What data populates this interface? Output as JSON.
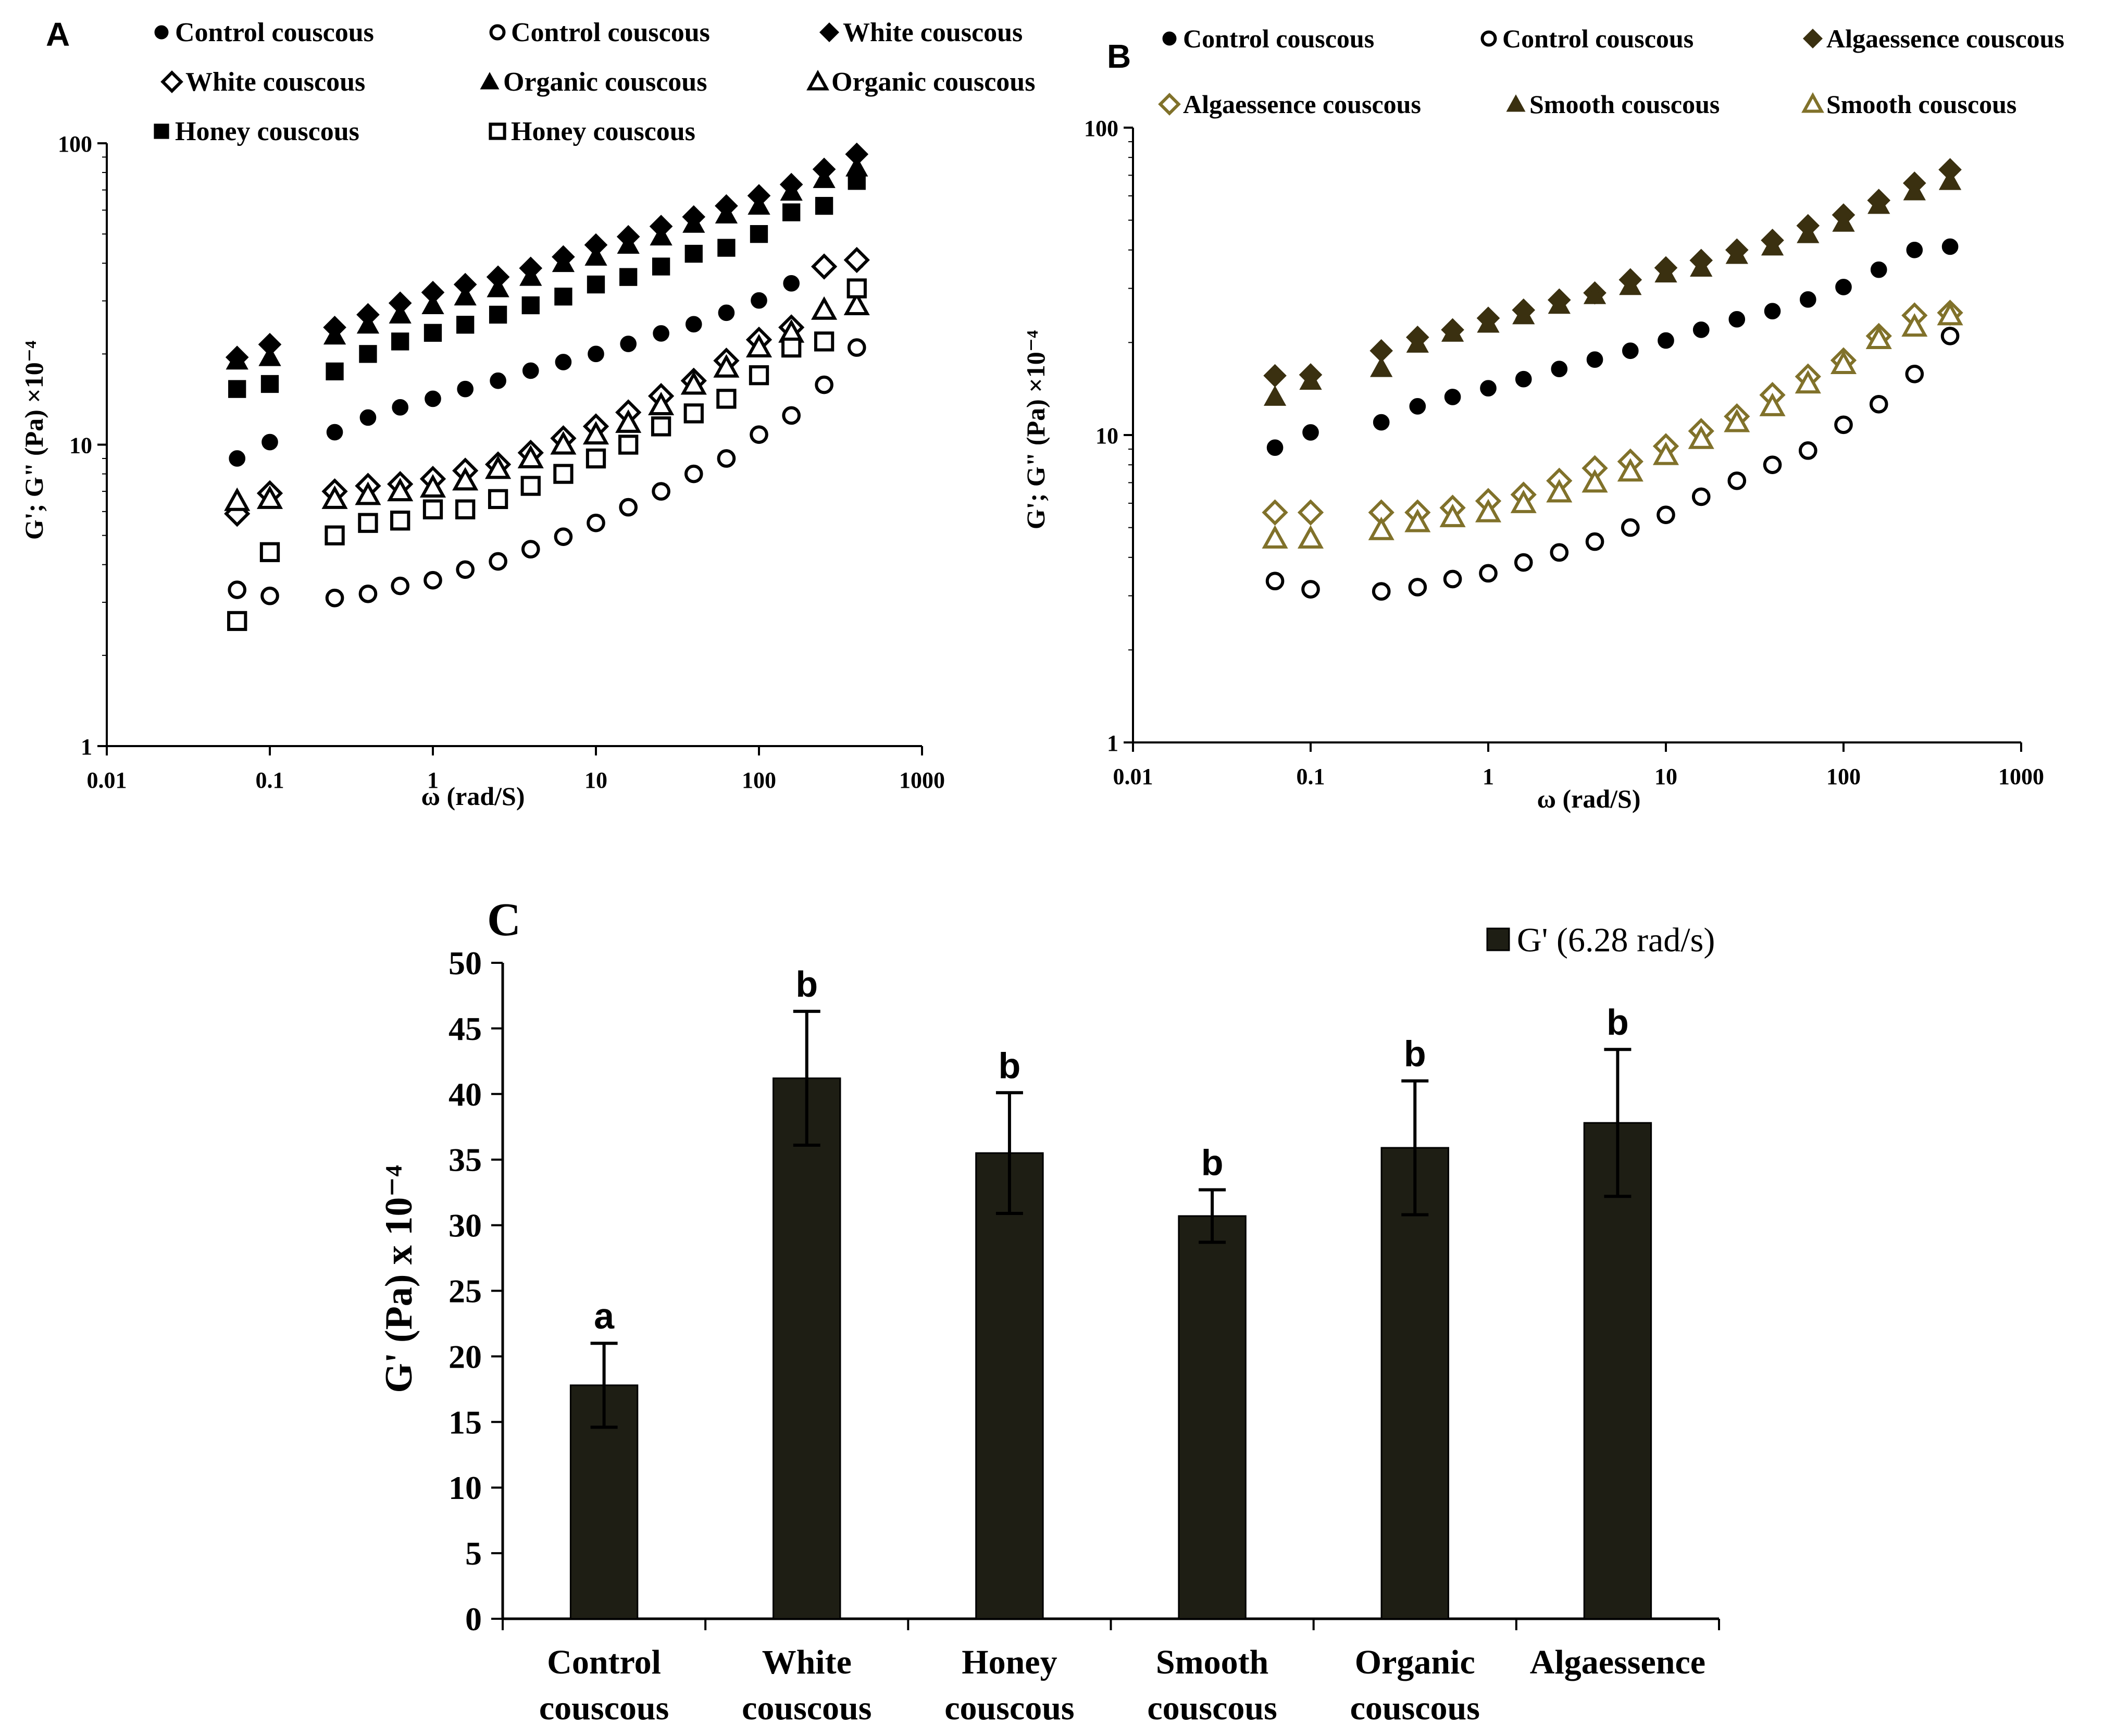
{
  "chart_data": [
    {
      "panel": "A",
      "type": "scatter",
      "title": "",
      "xlabel": "ω (rad/S)",
      "ylabel": "G'; G\" (Pa) ×10⁻⁴",
      "xscale": "log",
      "yscale": "log",
      "xlim": [
        0.01,
        1000
      ],
      "ylim": [
        1,
        100
      ],
      "xticks": [
        {
          "v": 0.01,
          "label": "0.01"
        },
        {
          "v": 0.1,
          "label": "0.1"
        },
        {
          "v": 1,
          "label": "1"
        },
        {
          "v": 10,
          "label": "10"
        },
        {
          "v": 100,
          "label": "100"
        },
        {
          "v": 1000,
          "label": "1000"
        }
      ],
      "yticks": [
        {
          "v": 1,
          "label": "1"
        },
        {
          "v": 10,
          "label": "10"
        },
        {
          "v": 100,
          "label": "100"
        }
      ],
      "legend_placement": "top",
      "x": [
        0.063,
        0.1,
        0.25,
        0.4,
        0.63,
        1,
        1.58,
        2.51,
        3.98,
        6.31,
        10,
        15.8,
        25.1,
        39.8,
        63.1,
        100,
        158,
        251,
        398
      ],
      "series": [
        {
          "name": "Control couscous",
          "marker": "circle",
          "filled": true,
          "color": "#000000",
          "values": [
            9.0,
            10.2,
            11.0,
            12.3,
            13.3,
            14.2,
            15.3,
            16.3,
            17.6,
            18.8,
            20.0,
            21.6,
            23.4,
            25.1,
            27.4,
            30.1,
            34.3,
            39.0,
            40.5
          ]
        },
        {
          "name": "Control couscous",
          "marker": "circle",
          "filled": false,
          "color": "#000000",
          "values": [
            3.3,
            3.15,
            3.1,
            3.2,
            3.4,
            3.55,
            3.85,
            4.1,
            4.5,
            4.95,
            5.5,
            6.2,
            7.0,
            8.0,
            9.0,
            10.8,
            12.5,
            15.8,
            21.0
          ]
        },
        {
          "name": "White couscous",
          "marker": "diamond",
          "filled": true,
          "color": "#000000",
          "values": [
            19.5,
            21.5,
            24.5,
            27.0,
            29.5,
            32.0,
            34.0,
            36.0,
            38.5,
            42.0,
            46.0,
            49.0,
            53.0,
            57.0,
            62.0,
            67.0,
            73.0,
            82.0,
            92.0
          ]
        },
        {
          "name": "White couscous",
          "marker": "diamond",
          "filled": false,
          "color": "#000000",
          "values": [
            5.9,
            6.9,
            7.0,
            7.3,
            7.4,
            7.7,
            8.2,
            8.6,
            9.4,
            10.5,
            11.5,
            12.8,
            14.5,
            16.3,
            19.0,
            22.3,
            24.5,
            39.0,
            41.0
          ]
        },
        {
          "name": "Organic couscous",
          "marker": "triangle",
          "filled": true,
          "color": "#000000",
          "values": [
            19.0,
            19.5,
            23.0,
            25.0,
            27.0,
            29.0,
            31.0,
            33.0,
            36.0,
            40.0,
            42.0,
            46.0,
            49.0,
            54.0,
            58.0,
            62.0,
            69.0,
            76.0,
            83.0
          ]
        },
        {
          "name": "Organic couscous",
          "marker": "triangle",
          "filled": false,
          "color": "#000000",
          "values": [
            6.5,
            6.6,
            6.6,
            6.8,
            7.0,
            7.2,
            7.6,
            8.3,
            9.0,
            10.0,
            10.8,
            11.8,
            13.5,
            15.8,
            18.0,
            21.0,
            23.5,
            28.0,
            29.0
          ]
        },
        {
          "name": "Honey couscous",
          "marker": "square",
          "filled": true,
          "color": "#000000",
          "values": [
            15.3,
            15.9,
            17.5,
            20.0,
            22.0,
            23.5,
            25.0,
            27.0,
            29.0,
            31.0,
            34.0,
            36.0,
            39.0,
            43.0,
            45.0,
            50.0,
            59.0,
            62.0,
            75.0
          ]
        },
        {
          "name": "Honey couscous",
          "marker": "square",
          "filled": false,
          "color": "#000000",
          "values": [
            2.6,
            4.4,
            5.0,
            5.5,
            5.6,
            6.1,
            6.1,
            6.6,
            7.3,
            8.0,
            9.0,
            10.0,
            11.5,
            12.7,
            14.2,
            17.0,
            21.0,
            22.0,
            33.0
          ]
        }
      ]
    },
    {
      "panel": "B",
      "type": "scatter",
      "title": "",
      "xlabel": "ω (rad/S)",
      "ylabel": "G'; G\" (Pa) ×10⁻⁴",
      "xscale": "log",
      "yscale": "log",
      "xlim": [
        0.01,
        1000
      ],
      "ylim": [
        1,
        100
      ],
      "xticks": [
        {
          "v": 0.01,
          "label": "0.01"
        },
        {
          "v": 0.1,
          "label": "0.1"
        },
        {
          "v": 1,
          "label": "1"
        },
        {
          "v": 10,
          "label": "10"
        },
        {
          "v": 100,
          "label": "100"
        },
        {
          "v": 1000,
          "label": "1000"
        }
      ],
      "yticks": [
        {
          "v": 1,
          "label": "1"
        },
        {
          "v": 10,
          "label": "10"
        },
        {
          "v": 100,
          "label": "100"
        }
      ],
      "legend_placement": "top",
      "x": [
        0.063,
        0.1,
        0.25,
        0.4,
        0.63,
        1,
        1.58,
        2.51,
        3.98,
        6.31,
        10,
        15.8,
        25.1,
        39.8,
        63.1,
        100,
        158,
        251,
        398
      ],
      "series": [
        {
          "name": "Control couscous",
          "marker": "circle",
          "filled": true,
          "color": "#000000",
          "values": [
            9.1,
            10.2,
            11.0,
            12.4,
            13.3,
            14.2,
            15.2,
            16.4,
            17.6,
            18.8,
            20.3,
            22.0,
            23.8,
            25.3,
            27.6,
            30.3,
            34.5,
            40.0,
            41.0
          ]
        },
        {
          "name": "Control couscous",
          "marker": "circle",
          "filled": false,
          "color": "#000000",
          "values": [
            3.35,
            3.15,
            3.1,
            3.2,
            3.4,
            3.55,
            3.85,
            4.15,
            4.5,
            5.0,
            5.5,
            6.3,
            7.1,
            8.0,
            8.9,
            10.8,
            12.6,
            15.8,
            21.0
          ]
        },
        {
          "name": "Algaessence couscous",
          "marker": "diamond",
          "filled": true,
          "color": "#3a3010",
          "values": [
            15.6,
            15.7,
            18.8,
            20.8,
            22.0,
            24.0,
            25.5,
            27.5,
            29.0,
            32.0,
            35.0,
            37.0,
            40.0,
            43.0,
            48.0,
            52.0,
            58.0,
            66.0,
            73.0
          ]
        },
        {
          "name": "Algaessence couscous",
          "marker": "diamond",
          "filled": false,
          "color": "#80712a",
          "values": [
            5.6,
            5.6,
            5.6,
            5.6,
            5.8,
            6.1,
            6.4,
            7.1,
            7.8,
            8.2,
            9.2,
            10.3,
            11.5,
            13.5,
            15.5,
            17.5,
            21.0,
            24.5,
            25.0
          ]
        },
        {
          "name": "Smooth couscous",
          "marker": "triangle",
          "filled": true,
          "color": "#3a3010",
          "values": [
            13.3,
            15.0,
            16.5,
            19.8,
            21.5,
            23.0,
            24.5,
            26.5,
            28.5,
            30.5,
            33.5,
            35.0,
            38.5,
            41.0,
            45.0,
            49.0,
            56.0,
            62.0,
            67.0
          ]
        },
        {
          "name": "Smooth couscous",
          "marker": "triangle",
          "filled": false,
          "color": "#80712a",
          "values": [
            4.6,
            4.6,
            4.9,
            5.2,
            5.4,
            5.6,
            6.0,
            6.5,
            7.0,
            7.6,
            8.6,
            9.7,
            11.0,
            12.4,
            14.7,
            17.0,
            20.5,
            22.5,
            24.5
          ]
        }
      ]
    },
    {
      "panel": "C",
      "type": "bar",
      "title": "",
      "xlabel": "",
      "ylabel": "G' (Pa) x 10⁻⁴",
      "ylim": [
        0,
        50
      ],
      "yticks": [
        0,
        5,
        10,
        15,
        20,
        25,
        30,
        35,
        40,
        45,
        50
      ],
      "legend": "G' (6.28 rad/s)",
      "legend_placement": "top-right",
      "bar_color": "#1e1e14",
      "categories": [
        [
          "Control",
          "couscous"
        ],
        [
          "White",
          "couscous"
        ],
        [
          "Honey",
          "couscous"
        ],
        [
          "Smooth",
          "couscous"
        ],
        [
          "Organic",
          "couscous"
        ],
        [
          "Algaessence",
          ""
        ]
      ],
      "values": [
        17.8,
        41.2,
        35.5,
        30.7,
        35.9,
        37.8
      ],
      "errors": [
        3.2,
        5.1,
        4.6,
        2.0,
        5.1,
        5.6
      ],
      "letters": [
        "a",
        "b",
        "b",
        "b",
        "b",
        "b"
      ]
    }
  ],
  "panel_labels": {
    "A": "A",
    "B": "B",
    "C": "C"
  }
}
